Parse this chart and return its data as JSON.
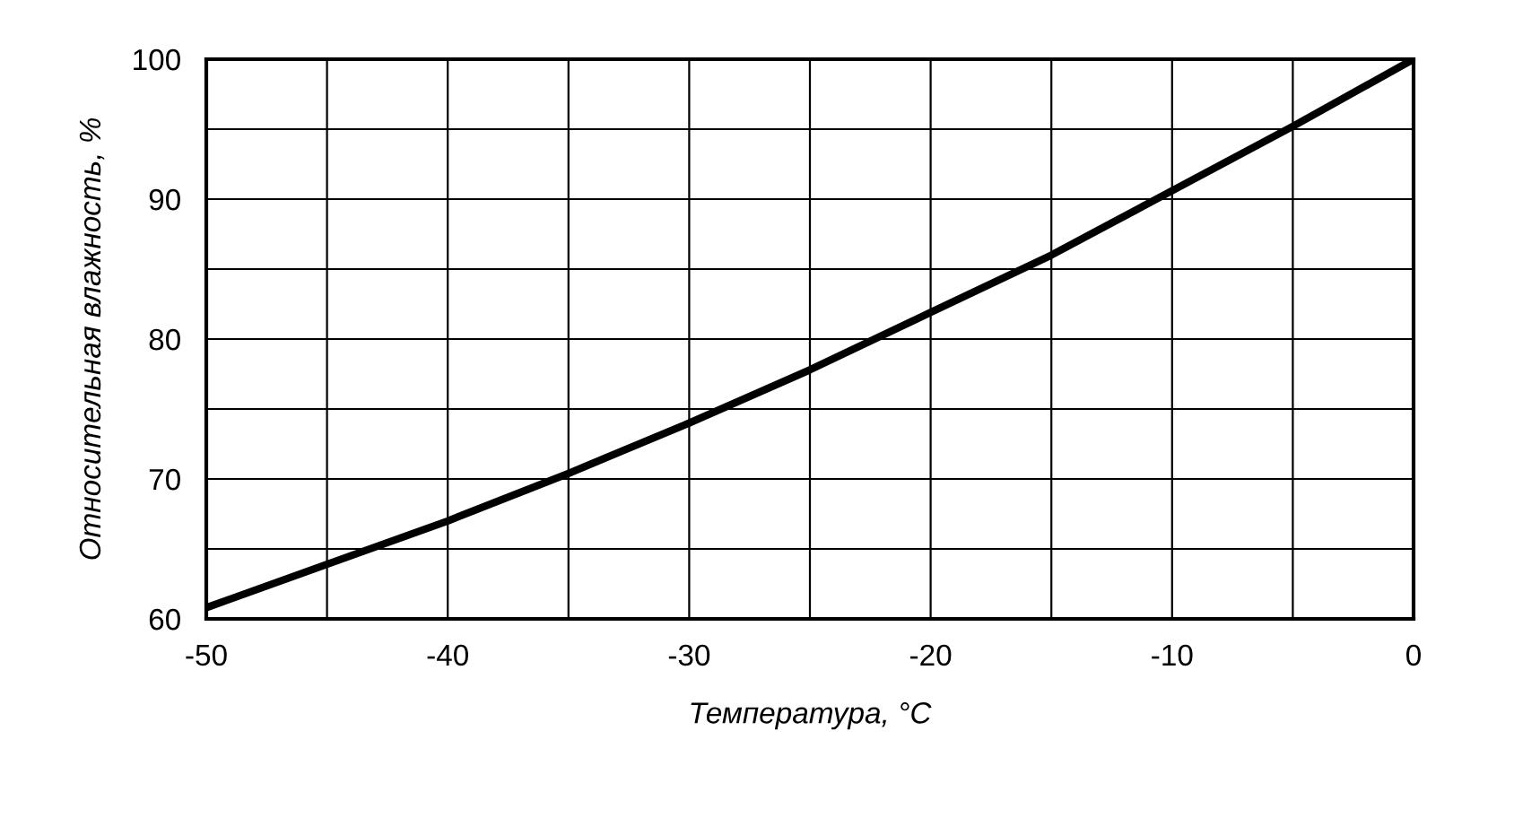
{
  "chart_data": {
    "type": "line",
    "xlabel": "Температура, °C",
    "ylabel": "Относительная влажность, %",
    "x": [
      -50,
      -45,
      -40,
      -35,
      -30,
      -25,
      -20,
      -15,
      -10,
      -5,
      0
    ],
    "series": [
      {
        "color": "#000000",
        "values": [
          60.8,
          63.9,
          67,
          70.4,
          74,
          77.8,
          81.9,
          86,
          90.6,
          95.2,
          100
        ]
      }
    ],
    "xlim": [
      -50,
      0
    ],
    "ylim": [
      60,
      100
    ],
    "xticks": [
      -50,
      {
        "value": -45,
        "label": null
      },
      -40,
      {
        "value": -35,
        "label": null
      },
      -30,
      {
        "value": -25,
        "label": null
      },
      -20,
      {
        "value": -15,
        "label": null
      },
      -10,
      {
        "value": -5,
        "label": null
      },
      0
    ],
    "yticks": [
      60,
      {
        "value": 65,
        "label": null
      },
      70,
      {
        "value": 75,
        "label": null
      },
      80,
      {
        "value": 85,
        "label": null
      },
      90,
      {
        "value": 95,
        "label": null
      },
      100
    ],
    "grid": true,
    "marker": "none",
    "line_style": "solid",
    "legend": false
  }
}
